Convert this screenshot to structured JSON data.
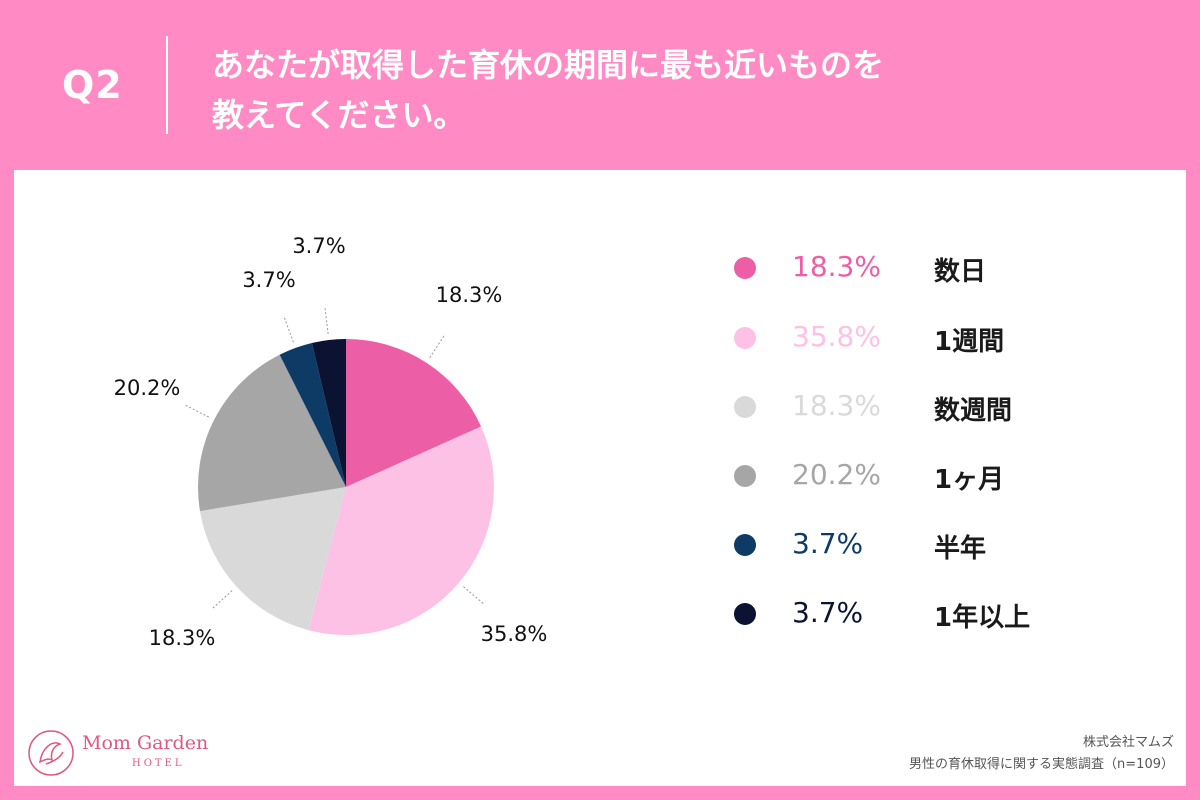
{
  "header": {
    "q_label": "Q2",
    "question_line1": "あなたが取得した育休の期間に最も近いものを",
    "question_line2": "教えてください。"
  },
  "chart_data": {
    "type": "pie",
    "categories": [
      "数日",
      "1週間",
      "数週間",
      "1ヶ月",
      "半年",
      "1年以上"
    ],
    "values": [
      18.3,
      35.8,
      18.3,
      20.2,
      3.7,
      3.7
    ],
    "labels": [
      "18.3%",
      "35.8%",
      "18.3%",
      "20.2%",
      "3.7%",
      "3.7%"
    ],
    "colors": [
      "#ec5fa6",
      "#fdc1e6",
      "#d9d9d9",
      "#a6a6a6",
      "#0d3b66",
      "#0b1232"
    ],
    "legend_text_colors": [
      "#ec5fa6",
      "#fdc1e6",
      "#d9d9d9",
      "#a6a6a6",
      "#0d3b66",
      "#0b1232"
    ],
    "legend_position": "right"
  },
  "footer": {
    "logo_name": "Mom Garden",
    "logo_sub": "HOTEL",
    "logo_icon": "mom-garden-logo-icon",
    "source_line1": "株式会社マムズ",
    "source_line2": "男性の育休取得に関する実態調査（n=109）"
  }
}
